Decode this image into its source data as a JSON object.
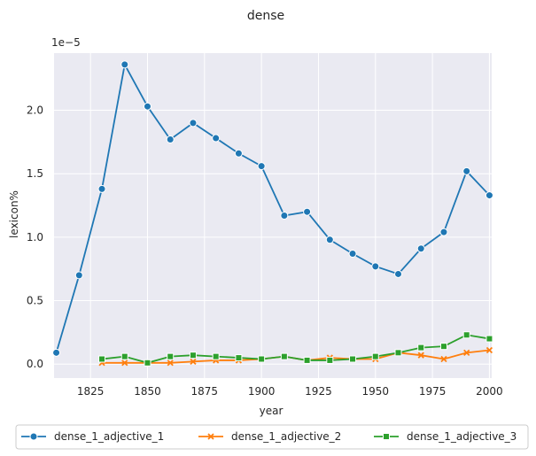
{
  "chart_data": {
    "type": "line",
    "title": "dense",
    "xlabel": "year",
    "ylabel": "lexicon%",
    "y_scale_label": "1e−5",
    "xlim": [
      1809,
      2001
    ],
    "ylim": [
      -0.11,
      2.45
    ],
    "x_ticks": [
      1825,
      1850,
      1875,
      1900,
      1925,
      1950,
      1975,
      2000
    ],
    "y_ticks": [
      0.0,
      0.5,
      1.0,
      1.5,
      2.0
    ],
    "y_tick_labels": [
      "0.0",
      "0.5",
      "1.0",
      "1.5",
      "2.0"
    ],
    "grid": true,
    "legend_position": "bottom",
    "series": [
      {
        "name": "dense_1_adjective_1",
        "color": "#1f77b4",
        "marker": "circle",
        "x": [
          1810,
          1820,
          1830,
          1840,
          1850,
          1860,
          1870,
          1880,
          1890,
          1900,
          1910,
          1920,
          1930,
          1940,
          1950,
          1960,
          1970,
          1980,
          1990,
          2000
        ],
        "values": [
          0.09,
          0.7,
          1.38,
          2.36,
          2.03,
          1.77,
          1.9,
          1.78,
          1.66,
          1.56,
          1.17,
          1.2,
          0.98,
          0.87,
          0.77,
          0.71,
          0.91,
          1.04,
          1.52,
          1.33
        ]
      },
      {
        "name": "dense_1_adjective_2",
        "color": "#ff7f0e",
        "marker": "x",
        "x": [
          1830,
          1840,
          1850,
          1860,
          1870,
          1880,
          1890,
          1900,
          1910,
          1920,
          1930,
          1940,
          1950,
          1960,
          1970,
          1980,
          1990,
          2000
        ],
        "values": [
          0.01,
          0.01,
          0.01,
          0.01,
          0.02,
          0.03,
          0.03,
          0.04,
          0.06,
          0.03,
          0.05,
          0.04,
          0.04,
          0.09,
          0.07,
          0.04,
          0.09,
          0.11
        ]
      },
      {
        "name": "dense_1_adjective_3",
        "color": "#2ca02c",
        "marker": "square",
        "x": [
          1830,
          1840,
          1850,
          1860,
          1870,
          1880,
          1890,
          1900,
          1910,
          1920,
          1930,
          1940,
          1950,
          1960,
          1970,
          1980,
          1990,
          2000
        ],
        "values": [
          0.04,
          0.06,
          0.01,
          0.06,
          0.07,
          0.06,
          0.05,
          0.04,
          0.06,
          0.03,
          0.03,
          0.04,
          0.06,
          0.09,
          0.13,
          0.14,
          0.23,
          0.2
        ]
      }
    ]
  }
}
